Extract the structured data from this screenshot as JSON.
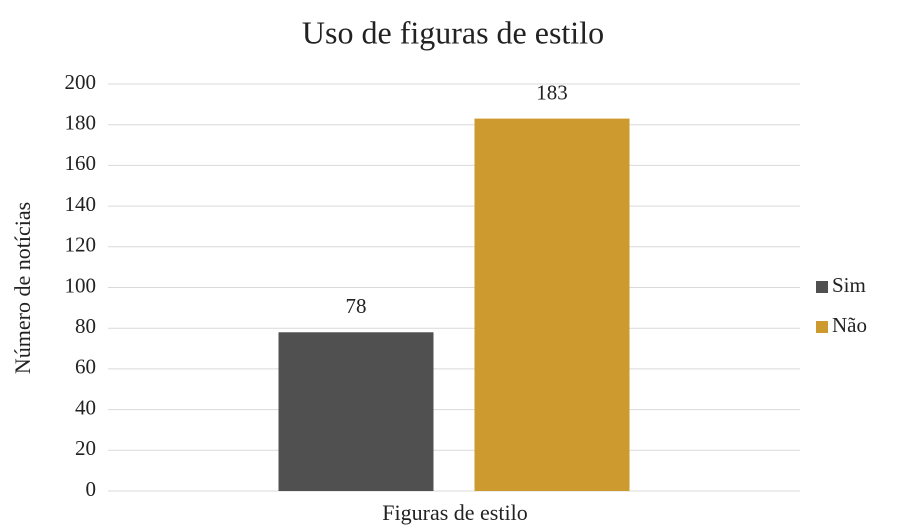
{
  "chart_data": {
    "type": "bar",
    "title": "Uso de figuras de estilo",
    "x_label": "Figuras de estilo",
    "y_label": "Número de notícias",
    "categories": [
      "Figuras de estilo"
    ],
    "series": [
      {
        "name": "Sim",
        "color": "#505050",
        "values": [
          78
        ]
      },
      {
        "name": "Não",
        "color": "#cc9a2e",
        "values": [
          183
        ]
      }
    ],
    "ylim": [
      0,
      200
    ],
    "yticks": [
      0,
      20,
      40,
      60,
      80,
      100,
      120,
      140,
      160,
      180,
      200
    ],
    "grid": true,
    "legend": "right"
  }
}
